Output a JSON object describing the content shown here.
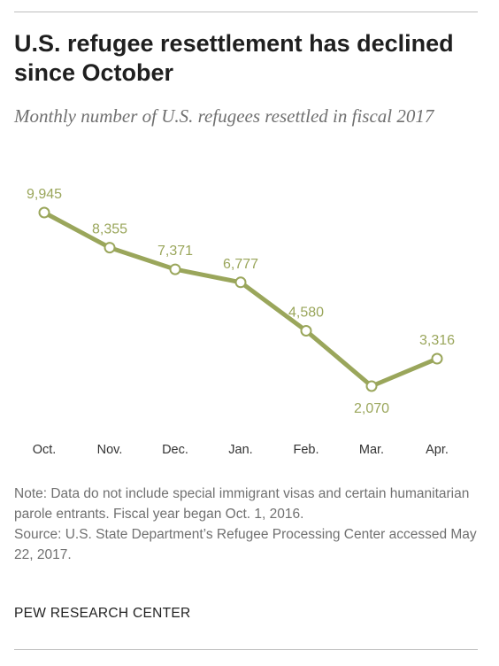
{
  "header": {
    "title": "U.S. refugee resettlement has declined since October",
    "subtitle": "Monthly number of U.S. refugees resettled in fiscal 2017"
  },
  "chart_data": {
    "type": "line",
    "title": "U.S. refugee resettlement has declined since October",
    "subtitle": "Monthly number of U.S. refugees resettled in fiscal 2017",
    "xlabel": "",
    "ylabel": "",
    "categories": [
      "Oct.",
      "Nov.",
      "Dec.",
      "Jan.",
      "Feb.",
      "Mar.",
      "Apr."
    ],
    "values": [
      9945,
      8355,
      7371,
      6777,
      4580,
      2070,
      3316
    ],
    "value_labels": [
      "9,945",
      "8,355",
      "7,371",
      "6,777",
      "4,580",
      "2,070",
      "3,316"
    ],
    "ylim": [
      0,
      10000
    ],
    "grid": false,
    "legend": "none",
    "colors": {
      "line": "#9aa65b",
      "label": "#9aa65b",
      "marker_fill": "#ffffff"
    }
  },
  "footer": {
    "note": "Note: Data do not include special immigrant visas and certain humanitarian parole entrants. Fiscal year began Oct. 1, 2016.",
    "source": "Source: U.S. State Department’s Refugee Processing Center accessed May 22, 2017.",
    "brand": "PEW RESEARCH CENTER"
  }
}
